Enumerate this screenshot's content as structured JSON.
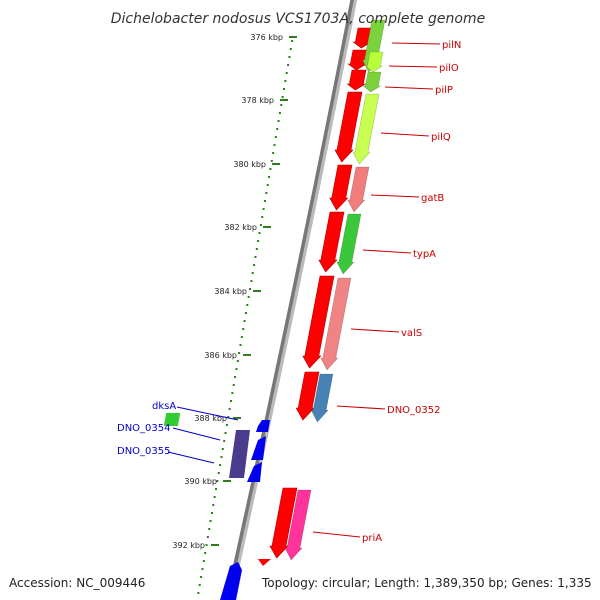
{
  "title": "Dichelobacter nodosus VCS1703A, complete genome",
  "footer": {
    "accession": "Accession: NC_009446",
    "summary": "Topology: circular; Length: 1,389,350 bp; Genes: 1,335"
  },
  "ticks": [
    "376 kbp",
    "378 kbp",
    "380 kbp",
    "382 kbp",
    "384 kbp",
    "386 kbp",
    "388 kbp",
    "390 kbp",
    "392 kbp"
  ],
  "colors": {
    "backbone": "#888888",
    "tick": "#2e7d1f",
    "forward_label": "#cc0000",
    "reverse_label": "#0000cc",
    "cds": "#ff0000"
  },
  "genes": {
    "forward": [
      {
        "name": "pilN",
        "color": "#7bd23a"
      },
      {
        "name": "pilO",
        "color": "#b7ff3a"
      },
      {
        "name": "pilP",
        "color": "#7bd23a"
      },
      {
        "name": "pilQ",
        "color": "#c8ff50"
      },
      {
        "name": "gatB",
        "color": "#f07c7c"
      },
      {
        "name": "typA",
        "color": "#3ac83a"
      },
      {
        "name": "valS",
        "color": "#f08484"
      },
      {
        "name": "DNO_0352",
        "color": "#4682b4"
      },
      {
        "name": "priA",
        "color": "#ff3399"
      }
    ],
    "reverse": [
      {
        "name": "dksA",
        "color": "#33cc33"
      },
      {
        "name": "DNO_0354",
        "color": "#4b3b8c"
      },
      {
        "name": "DNO_0355",
        "color": "#0000ee"
      }
    ]
  }
}
